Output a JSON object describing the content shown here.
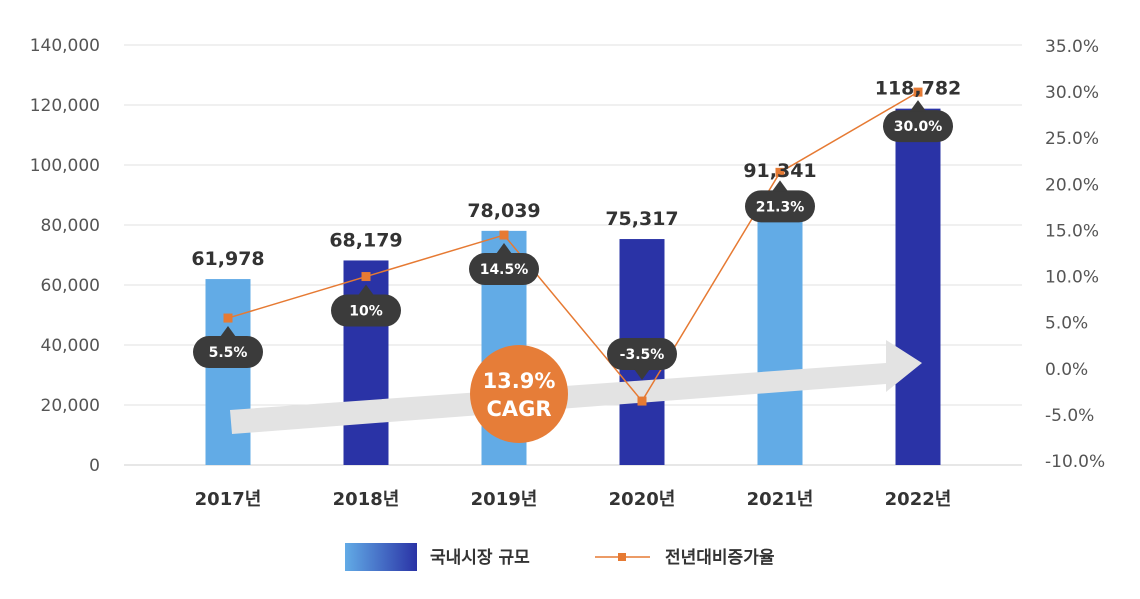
{
  "chart_data": {
    "type": "bar",
    "title": "",
    "categories": [
      "2017년",
      "2018년",
      "2019년",
      "2020년",
      "2021년",
      "2022년"
    ],
    "series": [
      {
        "name": "국내시장 규모",
        "type": "bar",
        "axis": "left",
        "values": [
          61978,
          68179,
          78039,
          75317,
          91341,
          118782
        ],
        "value_labels": [
          "61,978",
          "68,179",
          "78,039",
          "75,317",
          "91,341",
          "118,782"
        ],
        "bar_colors": [
          "#62abe6",
          "#2a33a6",
          "#62abe6",
          "#2a33a6",
          "#62abe6",
          "#2a33a6"
        ]
      },
      {
        "name": "전년대비증가율",
        "type": "line",
        "axis": "right",
        "values": [
          5.5,
          10,
          14.5,
          -3.5,
          21.3,
          30.0
        ],
        "value_labels": [
          "5.5%",
          "10%",
          "14.5%",
          "-3.5%",
          "21.3%",
          "30.0%"
        ],
        "color": "#e67a33"
      }
    ],
    "y_left": {
      "min": 0,
      "max": 140000,
      "ticks": [
        0,
        20000,
        40000,
        60000,
        80000,
        100000,
        120000,
        140000
      ],
      "tick_labels": [
        "0",
        "20,000",
        "40,000",
        "60,000",
        "80,000",
        "100,000",
        "120,000",
        "140,000"
      ]
    },
    "y_right": {
      "min": -10,
      "max": 35,
      "ticks": [
        -10,
        -5,
        0,
        5,
        10,
        15,
        20,
        25,
        30,
        35
      ],
      "tick_labels": [
        "-10.0%",
        "-5.0%",
        "0.0%",
        "5.0%",
        "10.0%",
        "15.0%",
        "20.0%",
        "25.0%",
        "30.0%",
        "35.0%"
      ]
    },
    "grid": true,
    "legend_position": "bottom-center",
    "annotations": [
      {
        "type": "trend-arrow",
        "label_lines": [
          "13.9%",
          "CAGR"
        ],
        "color": "#e67d38"
      }
    ]
  }
}
